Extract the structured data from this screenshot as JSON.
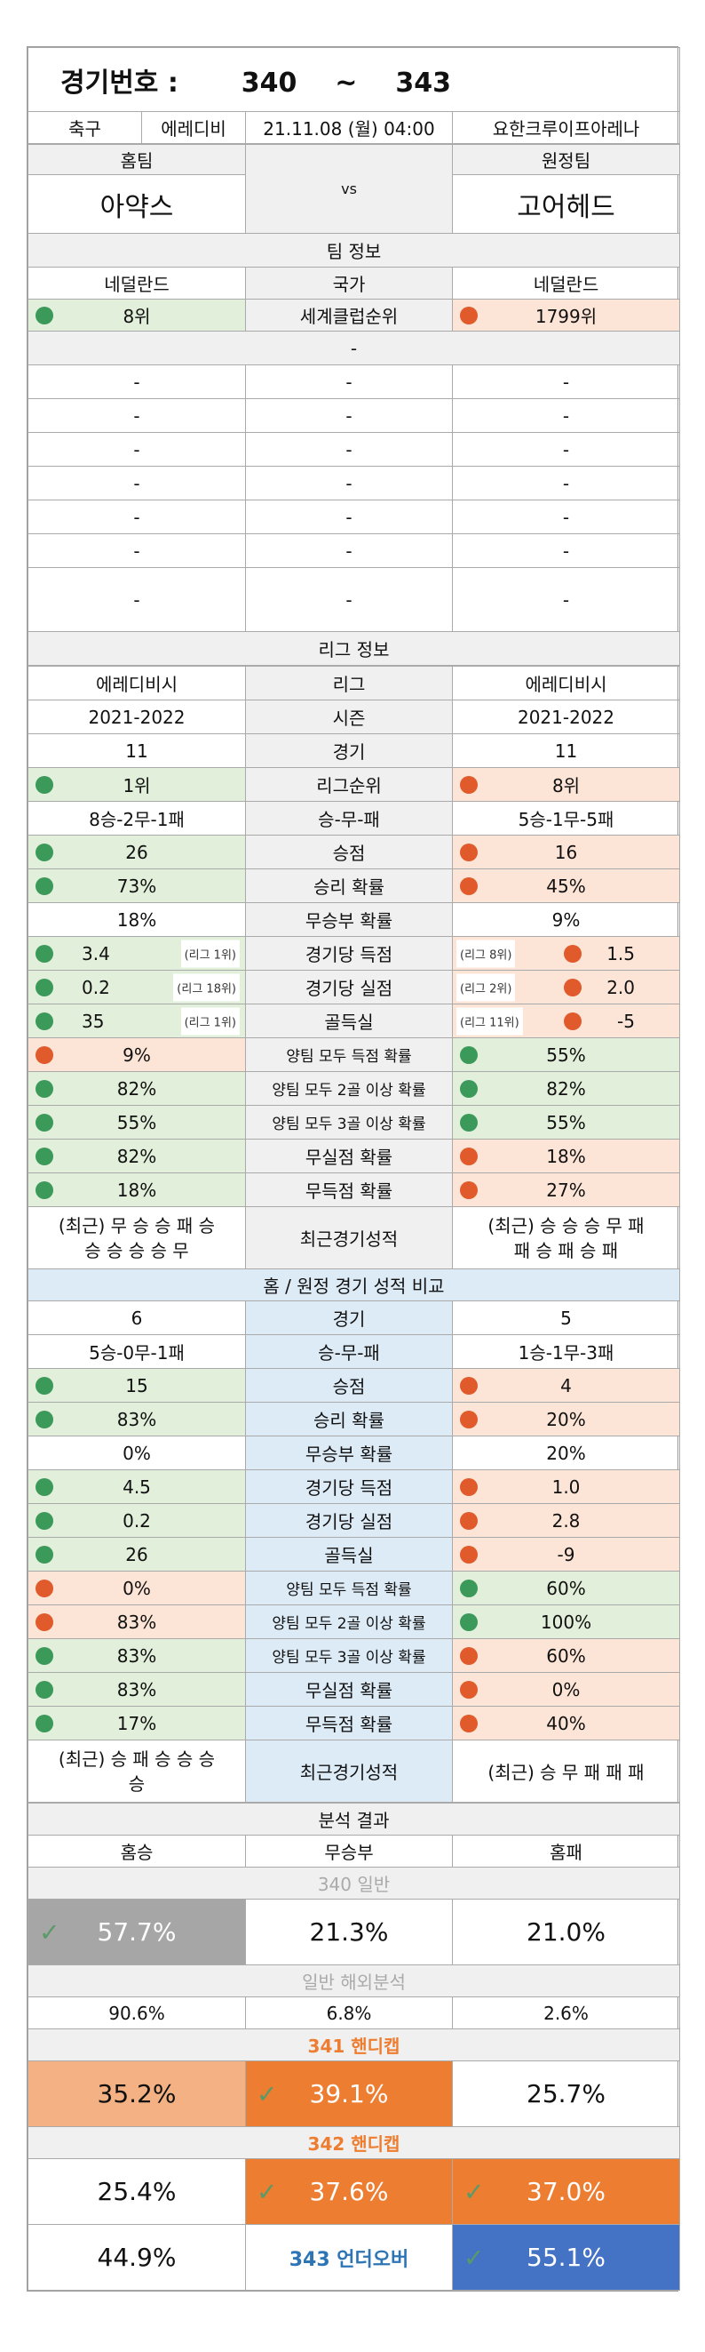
{
  "header": {
    "title": "경기번호 :",
    "range_start": "340",
    "tilde": "~",
    "range_end": "343"
  },
  "match": {
    "sport": "축구",
    "league": "에레디비",
    "datetime": "21.11.08 (월) 04:00",
    "venue": "요한크루이프아레나",
    "home_label": "홈팀",
    "away_label": "원정팀",
    "home_name": "아약스",
    "away_name": "고어헤드",
    "vs": "vs"
  },
  "team_info": {
    "section": "팀 정보",
    "country_label": "국가",
    "home_country": "네덜란드",
    "away_country": "네덜란드",
    "rank_label": "세계클럽순위",
    "home_rank": "8위",
    "away_rank": "1799위",
    "dash": "-",
    "blank": "-"
  },
  "league_info": {
    "section": "리그 정보",
    "rows": [
      {
        "home": "에레디비시",
        "label": "리그",
        "away": "에레디비시"
      },
      {
        "home": "2021-2022",
        "label": "시즌",
        "away": "2021-2022"
      },
      {
        "home": "11",
        "label": "경기",
        "away": "11"
      },
      {
        "home": "1위",
        "label": "리그순위",
        "away": "8위"
      },
      {
        "home": "8승-2무-1패",
        "label": "승-무-패",
        "away": "5승-1무-5패"
      },
      {
        "home": "26",
        "label": "승점",
        "away": "16"
      },
      {
        "home": "73%",
        "label": "승리 확률",
        "away": "45%"
      },
      {
        "home": "18%",
        "label": "무승부 확률",
        "away": "9%"
      },
      {
        "home": "3.4",
        "home_rank": "(리그 1위)",
        "label": "경기당 득점",
        "away": "1.5",
        "away_rank": "(리그 8위)"
      },
      {
        "home": "0.2",
        "home_rank": "(리그 18위)",
        "label": "경기당 실점",
        "away": "2.0",
        "away_rank": "(리그 2위)"
      },
      {
        "home": "35",
        "home_rank": "(리그 1위)",
        "label": "골득실",
        "away": "-5",
        "away_rank": "(리그 11위)"
      },
      {
        "home": "9%",
        "label": "양팀 모두 득점 확률",
        "away": "55%"
      },
      {
        "home": "82%",
        "label": "양팀 모두 2골 이상 확률",
        "away": "82%"
      },
      {
        "home": "55%",
        "label": "양팀 모두 3골 이상 확률",
        "away": "55%"
      },
      {
        "home": "82%",
        "label": "무실점 확률",
        "away": "18%"
      },
      {
        "home": "18%",
        "label": "무득점 확률",
        "away": "27%"
      }
    ],
    "recent_label": "최근경기성적",
    "home_recent_1": "(최근) 무 승 승 패 승",
    "home_recent_2": "승 승 승 승 무",
    "away_recent_1": "(최근) 승 승 승 무 패",
    "away_recent_2": "패 승 패 승 패"
  },
  "homeaway": {
    "section": "홈 / 원정 경기 성적 비교",
    "rows": [
      {
        "home": "6",
        "label": "경기",
        "away": "5"
      },
      {
        "home": "5승-0무-1패",
        "label": "승-무-패",
        "away": "1승-1무-3패"
      },
      {
        "home": "15",
        "label": "승점",
        "away": "4"
      },
      {
        "home": "83%",
        "label": "승리 확률",
        "away": "20%"
      },
      {
        "home": "0%",
        "label": "무승부 확률",
        "away": "20%"
      },
      {
        "home": "4.5",
        "label": "경기당 득점",
        "away": "1.0"
      },
      {
        "home": "0.2",
        "label": "경기당 실점",
        "away": "2.8"
      },
      {
        "home": "26",
        "label": "골득실",
        "away": "-9"
      },
      {
        "home": "0%",
        "label": "양팀 모두 득점 확률",
        "away": "60%"
      },
      {
        "home": "83%",
        "label": "양팀 모두 2골 이상 확률",
        "away": "100%"
      },
      {
        "home": "83%",
        "label": "양팀 모두 3골 이상 확률",
        "away": "60%"
      },
      {
        "home": "83%",
        "label": "무실점 확률",
        "away": "0%"
      },
      {
        "home": "17%",
        "label": "무득점 확률",
        "away": "40%"
      }
    ],
    "recent_label": "최근경기성적",
    "home_recent_1": "(최근) 승 패 승 승 승",
    "home_recent_2": "승",
    "away_recent": "(최근) 승 무 패 패 패"
  },
  "analysis": {
    "section": "분석 결과",
    "col_home": "홈승",
    "col_draw": "무승부",
    "col_away": "홈패",
    "general_label": "340 일반",
    "general": [
      "57.7%",
      "21.3%",
      "21.0%"
    ],
    "overseas_label": "일반 해외분석",
    "overseas": [
      "90.6%",
      "6.8%",
      "2.6%"
    ],
    "h341_label": "341 핸디캡",
    "h341": [
      "35.2%",
      "39.1%",
      "25.7%"
    ],
    "h342_label": "342 핸디캡",
    "h342": [
      "25.4%",
      "37.6%",
      "37.0%"
    ],
    "uo343_label": "343 언더오버",
    "uo343": [
      "44.9%",
      "55.1%"
    ],
    "check": "✓"
  },
  "colors": {
    "green": "#3b9a59",
    "red": "#e05a2b",
    "orange": "#ed7d31",
    "light_orange": "#f4b183",
    "gray": "#a6a6a6",
    "blue": "#4472c4"
  }
}
